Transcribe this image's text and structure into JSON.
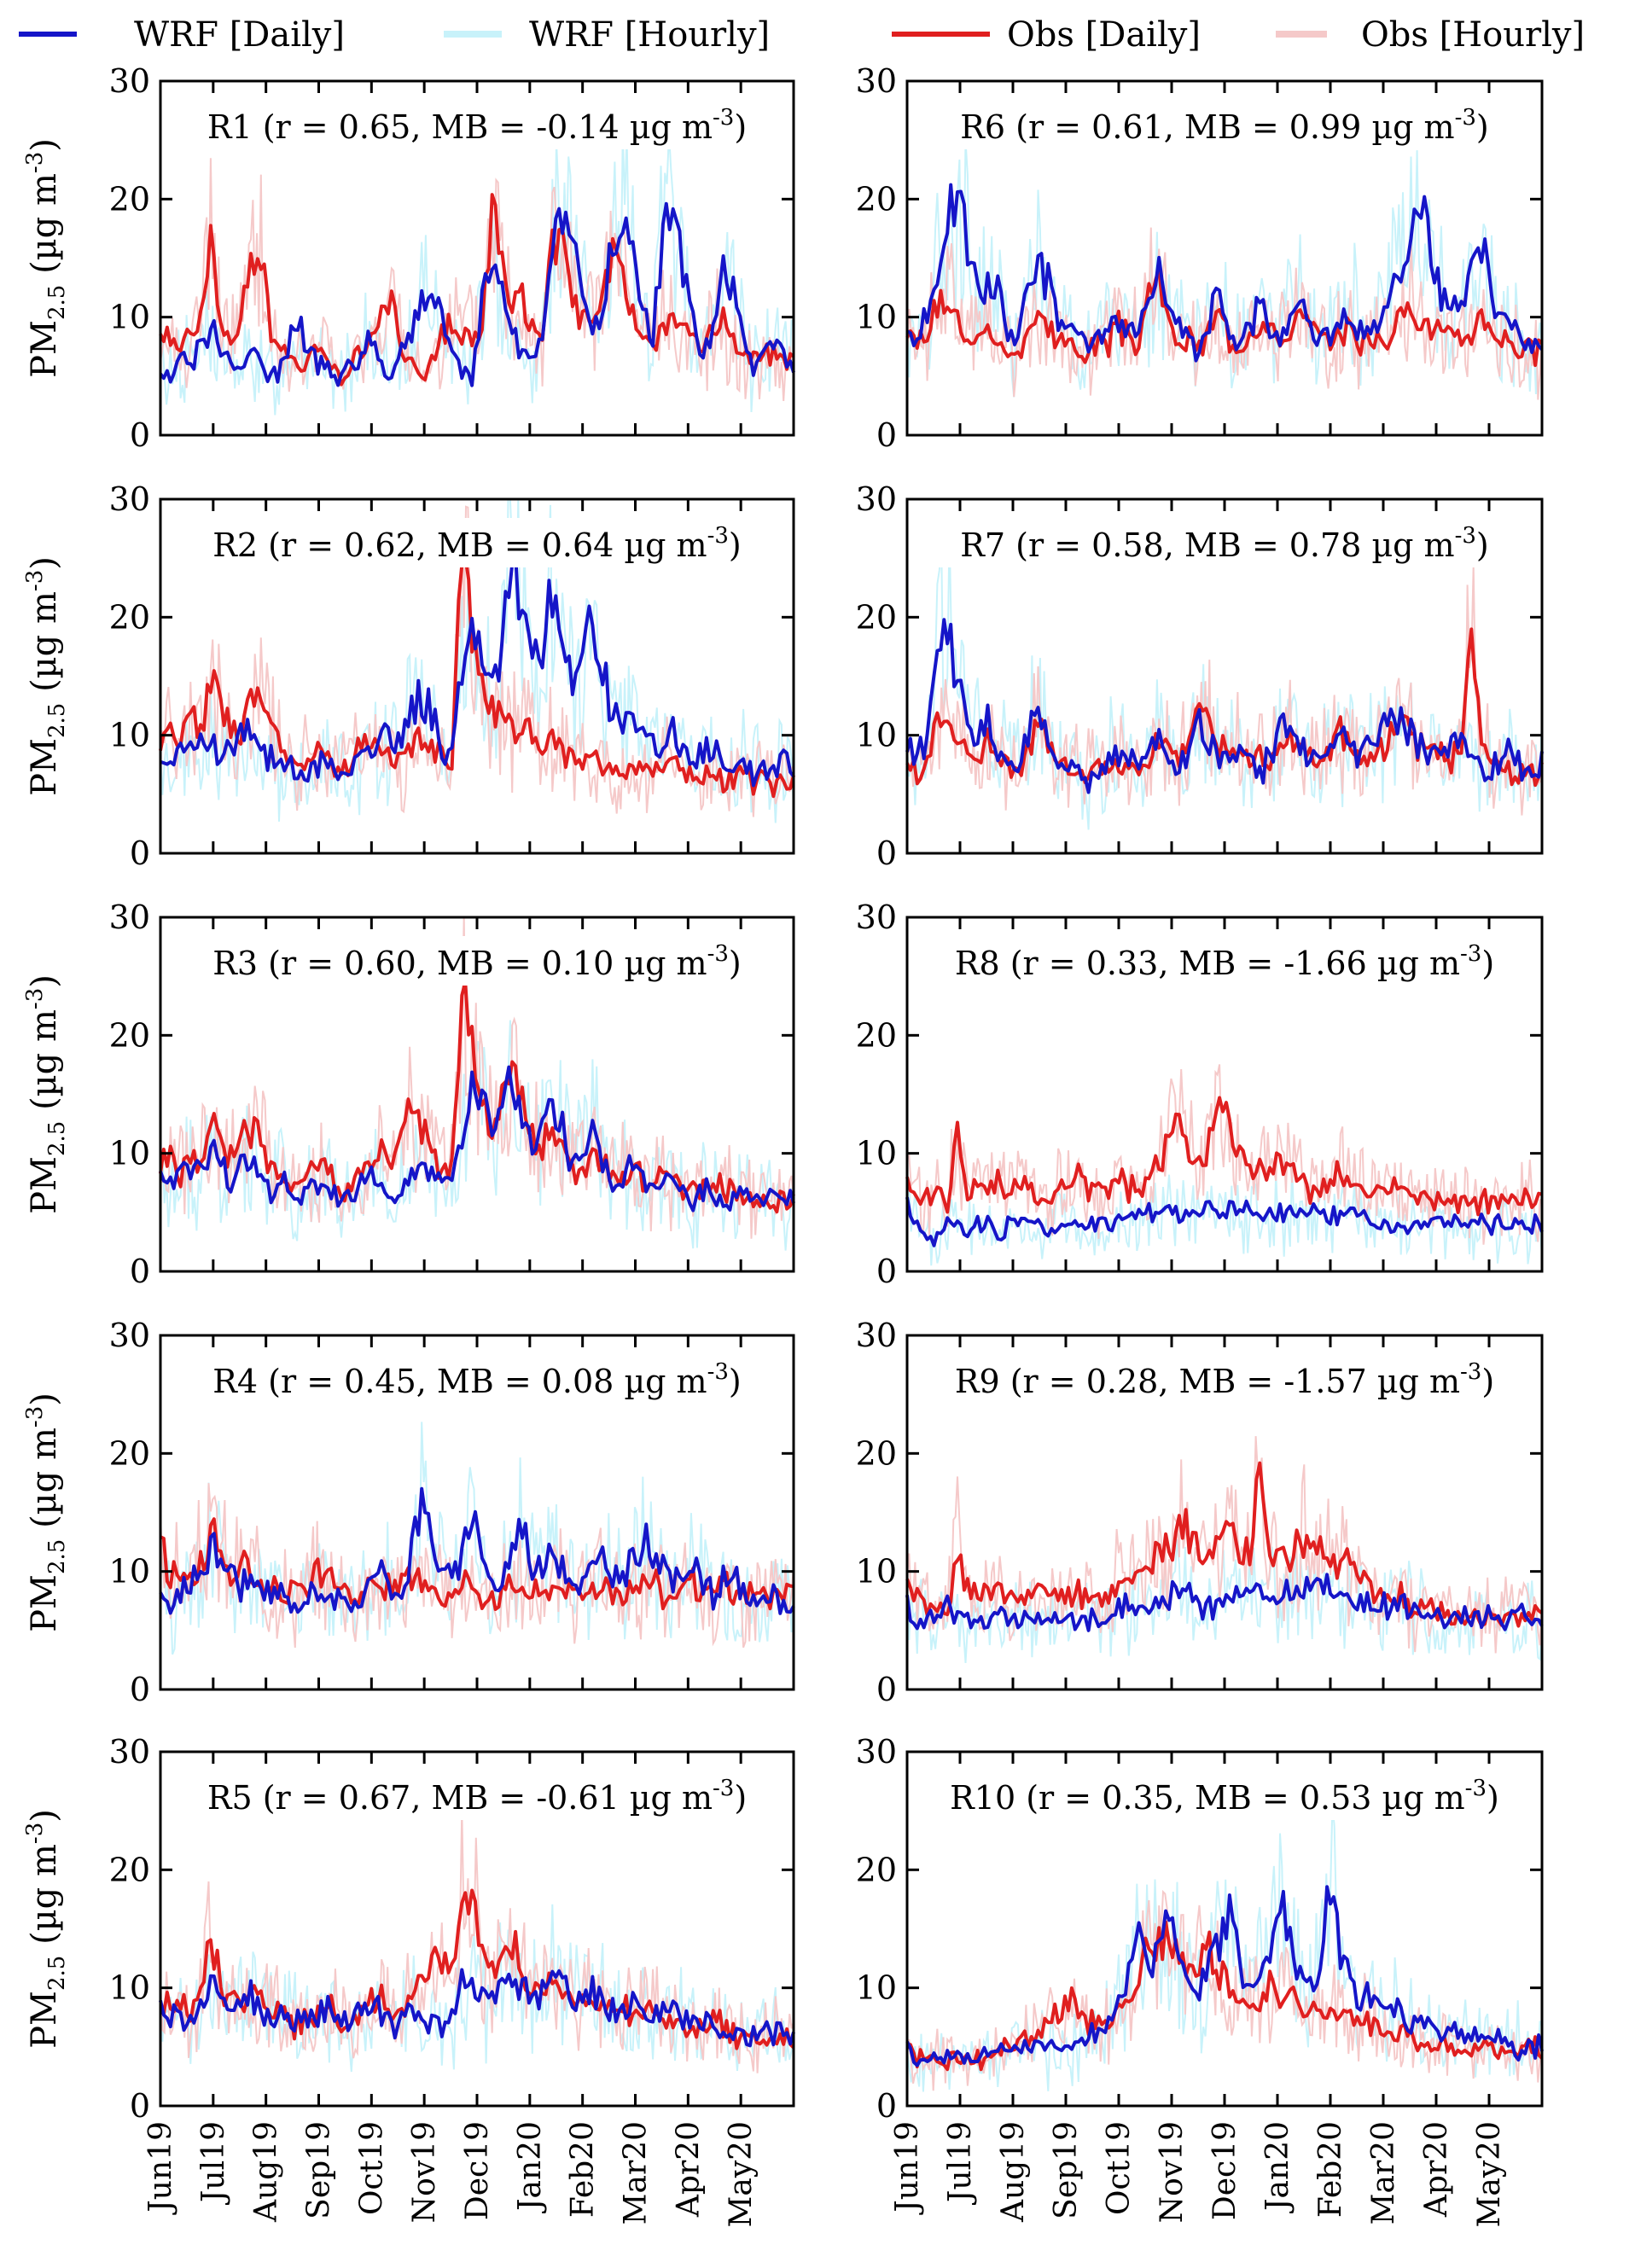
{
  "chart_data": {
    "type": "line",
    "legend": {
      "placement": "top",
      "entries": [
        {
          "label": "WRF [Daily]",
          "color": "#1515c8"
        },
        {
          "label": "WRF [Hourly]",
          "color": "#c8f2fa"
        },
        {
          "label": "Obs [Daily]",
          "color": "#e01f1f"
        },
        {
          "label": "Obs [Hourly]",
          "color": "#f5c9c9"
        }
      ]
    },
    "ylabel_main": "PM",
    "ylabel_sub": "2.5",
    "ylabel_unit": " (µg m",
    "ylabel_exp": "-3",
    "ylabel_close": ")",
    "ylim": [
      0,
      30
    ],
    "yticks": [
      "0",
      "10",
      "20",
      "30"
    ],
    "xticks": [
      "Jun19",
      "Jul19",
      "Aug19",
      "Sep19",
      "Oct19",
      "Nov19",
      "Dec19",
      "Jan20",
      "Feb20",
      "Mar20",
      "Apr20",
      "May20"
    ],
    "unit_text": " µg m",
    "unit_exp": "-3",
    "panels": [
      {
        "region": "R1",
        "r": "0.65",
        "mb": "-0.14",
        "wrf_daily": [
          6,
          5,
          7,
          6,
          8,
          9,
          7,
          6,
          5,
          7,
          6,
          5,
          6,
          8,
          9,
          7,
          6,
          5,
          5,
          6,
          7,
          8,
          6,
          5,
          7,
          9,
          11,
          12,
          10,
          8,
          6,
          5,
          11,
          14,
          13,
          9,
          7,
          6,
          8,
          17,
          19,
          16,
          12,
          9,
          10,
          16,
          18,
          15,
          11,
          8,
          17,
          20,
          14,
          10,
          7,
          8,
          15,
          12,
          8,
          6,
          7,
          8,
          7,
          6
        ],
        "obs_daily": [
          8,
          9,
          7,
          8,
          10,
          17,
          9,
          8,
          11,
          14,
          16,
          8,
          7,
          6,
          6,
          7,
          8,
          6,
          5,
          6,
          7,
          8,
          10,
          12,
          7,
          6,
          5,
          6,
          8,
          10,
          8,
          9,
          9,
          20,
          14,
          11,
          12,
          9,
          8,
          16,
          17,
          12,
          9,
          10,
          12,
          15,
          13,
          10,
          8,
          8,
          9,
          10,
          9,
          8,
          7,
          9,
          10,
          8,
          7,
          6,
          7,
          7,
          6,
          6
        ]
      },
      {
        "region": "R6",
        "r": "0.61",
        "mb": "0.99",
        "wrf_daily": [
          9,
          8,
          10,
          14,
          19,
          20,
          16,
          12,
          13,
          12,
          9,
          8,
          13,
          15,
          13,
          10,
          9,
          8,
          7,
          8,
          9,
          10,
          8,
          9,
          11,
          13,
          10,
          9,
          8,
          7,
          10,
          12,
          9,
          8,
          9,
          11,
          9,
          8,
          10,
          12,
          9,
          8,
          9,
          10,
          11,
          9,
          8,
          10,
          12,
          15,
          18,
          20,
          15,
          12,
          10,
          11,
          14,
          16,
          12,
          10,
          9,
          8,
          8,
          7
        ],
        "obs_daily": [
          8,
          7,
          9,
          11,
          12,
          10,
          9,
          8,
          9,
          8,
          7,
          7,
          9,
          10,
          9,
          8,
          8,
          7,
          7,
          8,
          8,
          9,
          8,
          8,
          12,
          13,
          9,
          8,
          8,
          7,
          9,
          10,
          8,
          8,
          9,
          10,
          9,
          8,
          9,
          10,
          9,
          8,
          8,
          9,
          9,
          8,
          8,
          8,
          9,
          10,
          11,
          10,
          9,
          9,
          8,
          8,
          9,
          10,
          9,
          8,
          8,
          7,
          7,
          7
        ]
      },
      {
        "region": "R2",
        "r": "0.62",
        "mb": "0.64",
        "wrf_daily": [
          8,
          7,
          9,
          8,
          10,
          9,
          8,
          9,
          10,
          11,
          9,
          8,
          8,
          7,
          6,
          7,
          8,
          7,
          6,
          7,
          8,
          9,
          10,
          9,
          10,
          12,
          13,
          12,
          9,
          8,
          16,
          20,
          17,
          14,
          18,
          24,
          20,
          16,
          18,
          22,
          18,
          14,
          16,
          20,
          15,
          12,
          11,
          12,
          10,
          9,
          9,
          10,
          9,
          8,
          8,
          9,
          8,
          7,
          8,
          7,
          8,
          7,
          8,
          7
        ],
        "obs_daily": [
          10,
          11,
          9,
          12,
          10,
          15,
          12,
          11,
          10,
          12,
          14,
          11,
          9,
          8,
          7,
          8,
          9,
          8,
          7,
          8,
          9,
          10,
          9,
          8,
          8,
          9,
          10,
          9,
          8,
          7,
          26,
          18,
          15,
          12,
          11,
          10,
          11,
          10,
          9,
          10,
          9,
          8,
          8,
          9,
          8,
          7,
          7,
          8,
          7,
          7,
          7,
          8,
          7,
          6,
          6,
          7,
          6,
          6,
          7,
          6,
          7,
          6,
          6,
          6
        ]
      },
      {
        "region": "R7",
        "r": "0.58",
        "mb": "0.78",
        "wrf_daily": [
          9,
          8,
          10,
          16,
          20,
          14,
          12,
          10,
          11,
          9,
          8,
          8,
          10,
          12,
          10,
          8,
          7,
          7,
          6,
          7,
          8,
          9,
          8,
          7,
          8,
          10,
          8,
          7,
          9,
          11,
          10,
          8,
          8,
          9,
          8,
          7,
          8,
          10,
          11,
          9,
          8,
          8,
          9,
          10,
          9,
          8,
          9,
          10,
          11,
          12,
          10,
          9,
          8,
          8,
          9,
          10,
          8,
          7,
          7,
          8,
          9,
          7,
          7,
          8
        ],
        "obs_daily": [
          8,
          7,
          8,
          11,
          12,
          10,
          9,
          8,
          9,
          8,
          8,
          7,
          9,
          11,
          9,
          8,
          7,
          7,
          7,
          7,
          8,
          8,
          7,
          7,
          8,
          10,
          9,
          8,
          9,
          12,
          11,
          9,
          8,
          9,
          8,
          8,
          8,
          9,
          10,
          9,
          8,
          8,
          9,
          10,
          9,
          8,
          8,
          9,
          10,
          11,
          10,
          9,
          9,
          8,
          8,
          9,
          20,
          10,
          8,
          7,
          7,
          7,
          7,
          7
        ]
      },
      {
        "region": "R3",
        "r": "0.60",
        "mb": "0.10",
        "wrf_daily": [
          8,
          7,
          9,
          8,
          9,
          10,
          9,
          8,
          9,
          9,
          8,
          7,
          8,
          7,
          6,
          7,
          8,
          7,
          6,
          6,
          7,
          8,
          7,
          6,
          7,
          8,
          9,
          8,
          7,
          8,
          12,
          16,
          15,
          12,
          14,
          17,
          13,
          10,
          13,
          15,
          12,
          9,
          10,
          13,
          10,
          8,
          8,
          9,
          8,
          7,
          8,
          8,
          7,
          6,
          7,
          7,
          6,
          6,
          7,
          6,
          6,
          7,
          6,
          6
        ],
        "obs_daily": [
          9,
          10,
          8,
          10,
          9,
          13,
          11,
          10,
          11,
          12,
          11,
          9,
          8,
          7,
          7,
          8,
          9,
          8,
          7,
          7,
          8,
          9,
          10,
          9,
          12,
          14,
          12,
          10,
          9,
          9,
          24,
          20,
          15,
          12,
          14,
          17,
          14,
          11,
          11,
          12,
          10,
          9,
          9,
          10,
          9,
          8,
          8,
          9,
          8,
          8,
          8,
          8,
          7,
          7,
          7,
          7,
          7,
          7,
          7,
          6,
          6,
          6,
          6,
          6
        ]
      },
      {
        "region": "R8",
        "r": "0.33",
        "mb": "-1.66",
        "wrf_daily": [
          6,
          4,
          3,
          3,
          4,
          4,
          3,
          4,
          4,
          3,
          4,
          4,
          4,
          4,
          3,
          4,
          4,
          4,
          4,
          4,
          4,
          4,
          5,
          5,
          5,
          5,
          5,
          5,
          5,
          5,
          5,
          5,
          5,
          5,
          5,
          5,
          5,
          5,
          5,
          5,
          5,
          5,
          5,
          5,
          5,
          5,
          4,
          4,
          4,
          4,
          4,
          4,
          4,
          4,
          4,
          4,
          4,
          4,
          4,
          4,
          4,
          4,
          4,
          4
        ],
        "obs_daily": [
          8,
          6,
          6,
          7,
          6,
          12,
          7,
          7,
          7,
          8,
          7,
          7,
          7,
          6,
          6,
          7,
          7,
          8,
          7,
          7,
          7,
          8,
          7,
          7,
          8,
          9,
          11,
          12,
          10,
          9,
          11,
          15,
          12,
          10,
          9,
          9,
          8,
          10,
          9,
          8,
          7,
          7,
          8,
          8,
          7,
          7,
          7,
          7,
          7,
          7,
          6,
          6,
          6,
          6,
          6,
          6,
          6,
          6,
          6,
          6,
          6,
          6,
          6,
          6
        ]
      },
      {
        "region": "R4",
        "r": "0.45",
        "mb": "0.08",
        "wrf_daily": [
          8,
          7,
          8,
          9,
          10,
          12,
          11,
          10,
          9,
          9,
          8,
          8,
          8,
          7,
          7,
          8,
          9,
          8,
          7,
          7,
          8,
          9,
          10,
          9,
          8,
          12,
          16,
          13,
          10,
          9,
          11,
          15,
          12,
          9,
          9,
          12,
          14,
          11,
          10,
          12,
          11,
          9,
          9,
          10,
          11,
          10,
          9,
          11,
          13,
          12,
          10,
          9,
          10,
          11,
          9,
          8,
          9,
          10,
          8,
          7,
          7,
          8,
          7,
          7
        ],
        "obs_daily": [
          12,
          10,
          9,
          9,
          11,
          13,
          12,
          10,
          10,
          10,
          9,
          9,
          9,
          8,
          8,
          9,
          10,
          9,
          9,
          8,
          8,
          9,
          9,
          8,
          9,
          9,
          10,
          9,
          8,
          8,
          9,
          9,
          8,
          8,
          8,
          9,
          9,
          8,
          8,
          9,
          9,
          8,
          8,
          9,
          9,
          8,
          8,
          9,
          9,
          9,
          8,
          8,
          9,
          9,
          8,
          8,
          9,
          8,
          8,
          8,
          8,
          8,
          8,
          8
        ]
      },
      {
        "region": "R9",
        "r": "0.28",
        "mb": "-1.57",
        "wrf_daily": [
          7,
          6,
          6,
          6,
          7,
          6,
          6,
          6,
          6,
          6,
          6,
          6,
          6,
          6,
          6,
          6,
          6,
          6,
          6,
          6,
          6,
          7,
          7,
          7,
          7,
          7,
          8,
          8,
          8,
          7,
          7,
          7,
          8,
          8,
          8,
          8,
          8,
          8,
          8,
          8,
          9,
          9,
          8,
          8,
          8,
          8,
          7,
          7,
          7,
          7,
          7,
          7,
          6,
          6,
          6,
          6,
          6,
          6,
          6,
          6,
          6,
          6,
          6,
          6
        ],
        "obs_daily": [
          8,
          8,
          7,
          7,
          7,
          13,
          8,
          8,
          8,
          8,
          8,
          8,
          8,
          8,
          8,
          8,
          8,
          8,
          8,
          8,
          8,
          9,
          9,
          10,
          11,
          12,
          12,
          14,
          13,
          11,
          11,
          12,
          14,
          12,
          11,
          20,
          12,
          11,
          11,
          13,
          13,
          12,
          11,
          11,
          11,
          10,
          9,
          8,
          8,
          8,
          7,
          7,
          7,
          7,
          6,
          6,
          6,
          6,
          6,
          6,
          6,
          6,
          6,
          6
        ]
      },
      {
        "region": "R5",
        "r": "0.67",
        "mb": "-0.61",
        "wrf_daily": [
          8,
          7,
          8,
          7,
          9,
          10,
          9,
          8,
          9,
          9,
          8,
          7,
          8,
          7,
          7,
          7,
          8,
          8,
          7,
          7,
          8,
          8,
          8,
          7,
          7,
          8,
          8,
          7,
          7,
          7,
          10,
          11,
          10,
          9,
          10,
          11,
          10,
          9,
          10,
          11,
          10,
          9,
          9,
          10,
          9,
          8,
          8,
          9,
          8,
          7,
          8,
          8,
          7,
          7,
          7,
          7,
          6,
          6,
          6,
          6,
          6,
          6,
          6,
          6
        ],
        "obs_daily": [
          9,
          8,
          9,
          8,
          10,
          15,
          10,
          9,
          9,
          10,
          9,
          8,
          8,
          7,
          7,
          8,
          8,
          8,
          7,
          7,
          8,
          9,
          9,
          8,
          8,
          9,
          10,
          11,
          13,
          12,
          17,
          18,
          13,
          11,
          12,
          14,
          12,
          10,
          10,
          11,
          10,
          9,
          9,
          9,
          9,
          8,
          8,
          8,
          8,
          8,
          7,
          7,
          7,
          7,
          7,
          7,
          7,
          6,
          6,
          6,
          6,
          6,
          6,
          6
        ]
      },
      {
        "region": "R10",
        "r": "0.35",
        "mb": "0.53",
        "wrf_daily": [
          5,
          4,
          4,
          4,
          4,
          4,
          4,
          4,
          5,
          5,
          5,
          5,
          5,
          5,
          5,
          5,
          5,
          5,
          6,
          6,
          7,
          9,
          11,
          15,
          12,
          14,
          16,
          13,
          11,
          10,
          12,
          14,
          16,
          12,
          10,
          11,
          13,
          18,
          14,
          11,
          10,
          12,
          20,
          13,
          10,
          9,
          9,
          8,
          8,
          8,
          7,
          7,
          7,
          6,
          6,
          6,
          6,
          6,
          6,
          6,
          5,
          5,
          5,
          5
        ],
        "obs_daily": [
          5,
          4,
          4,
          4,
          4,
          4,
          4,
          4,
          4,
          5,
          5,
          6,
          6,
          6,
          7,
          8,
          9,
          8,
          7,
          7,
          7,
          8,
          9,
          11,
          13,
          15,
          14,
          12,
          11,
          12,
          13,
          11,
          10,
          9,
          9,
          9,
          10,
          9,
          9,
          9,
          8,
          8,
          8,
          8,
          7,
          7,
          7,
          6,
          6,
          6,
          6,
          5,
          5,
          5,
          5,
          5,
          5,
          5,
          5,
          5,
          5,
          5,
          5,
          5
        ]
      }
    ]
  }
}
